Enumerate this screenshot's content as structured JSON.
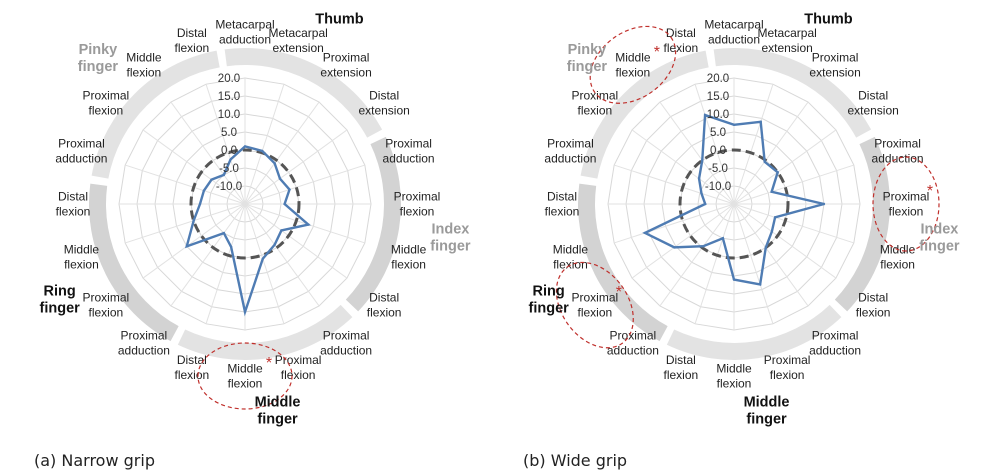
{
  "chart_data": [
    {
      "type": "radar",
      "caption": "(a) Narrow grip",
      "rlim": [
        -15,
        20
      ],
      "rticks": [
        "20.0",
        "15.0",
        "10.0",
        "5.0",
        "0.0",
        "-5.0",
        "-10.0"
      ],
      "reference_ring": 0,
      "categories": [
        "Metacarpal adduction",
        "Metacarpal extension",
        "Proximal extension",
        "Distal extension",
        "Proximal adduction",
        "Proximal flexion",
        "Middle flexion",
        "Distal flexion",
        "Proximal adduction",
        "Proximal flexion",
        "Middle flexion",
        "Distal flexion",
        "Proximal adduction",
        "Proximal flexion",
        "Middle flexion",
        "Distal flexion",
        "Proximal adduction",
        "Proximal flexion",
        "Middle flexion",
        "Distal flexion"
      ],
      "groups": [
        {
          "name": "Thumb",
          "from": 0,
          "to": 3,
          "color": "#111111"
        },
        {
          "name": "Index finger",
          "from": 4,
          "to": 7,
          "color": "#9a9a9a"
        },
        {
          "name": "Middle finger",
          "from": 8,
          "to": 11,
          "color": "#111111"
        },
        {
          "name": "Ring finger",
          "from": 12,
          "to": 15,
          "color": "#111111"
        },
        {
          "name": "Pinky finger",
          "from": 16,
          "to": 19,
          "color": "#9a9a9a"
        }
      ],
      "values": [
        1.0,
        0.5,
        -1.0,
        -3.0,
        -2.0,
        -4.0,
        3.5,
        -2.5,
        -1.0,
        1.0,
        15.0,
        -2.5,
        -5.0,
        5.0,
        0.0,
        -2.5,
        -3.0,
        -3.5,
        -5.0,
        -2.0
      ],
      "significant": [
        10
      ],
      "series_color": "#4f7cb3"
    },
    {
      "type": "radar",
      "caption": "(b) Wide grip",
      "rlim": [
        -15,
        20
      ],
      "rticks": [
        "20.0",
        "15.0",
        "10.0",
        "5.0",
        "0.0",
        "-5.0",
        "-10.0"
      ],
      "reference_ring": 0,
      "categories": [
        "Metacarpal adduction",
        "Metacarpal extension",
        "Proximal extension",
        "Distal extension",
        "Proximal adduction",
        "Proximal flexion",
        "Middle flexion",
        "Distal flexion",
        "Proximal adduction",
        "Proximal flexion",
        "Middle flexion",
        "Distal flexion",
        "Proximal adduction",
        "Proximal flexion",
        "Middle flexion",
        "Distal flexion",
        "Proximal adduction",
        "Proximal flexion",
        "Middle flexion",
        "Distal flexion"
      ],
      "groups": [
        {
          "name": "Thumb",
          "from": 0,
          "to": 3,
          "color": "#111111"
        },
        {
          "name": "Index finger",
          "from": 4,
          "to": 7,
          "color": "#9a9a9a"
        },
        {
          "name": "Middle finger",
          "from": 8,
          "to": 11,
          "color": "#111111"
        },
        {
          "name": "Ring finger",
          "from": 12,
          "to": 15,
          "color": "#111111"
        },
        {
          "name": "Pinky finger",
          "from": 16,
          "to": 19,
          "color": "#9a9a9a"
        }
      ],
      "values": [
        7.0,
        9.0,
        -0.5,
        0.0,
        -4.0,
        10.0,
        -3.0,
        -2.0,
        0.0,
        8.5,
        6.0,
        -5.0,
        -0.5,
        5.5,
        11.0,
        -7.0,
        -5.5,
        -3.0,
        0.0,
        11.0
      ],
      "significant": [
        5,
        13,
        18
      ],
      "series_color": "#4f7cb3"
    }
  ]
}
